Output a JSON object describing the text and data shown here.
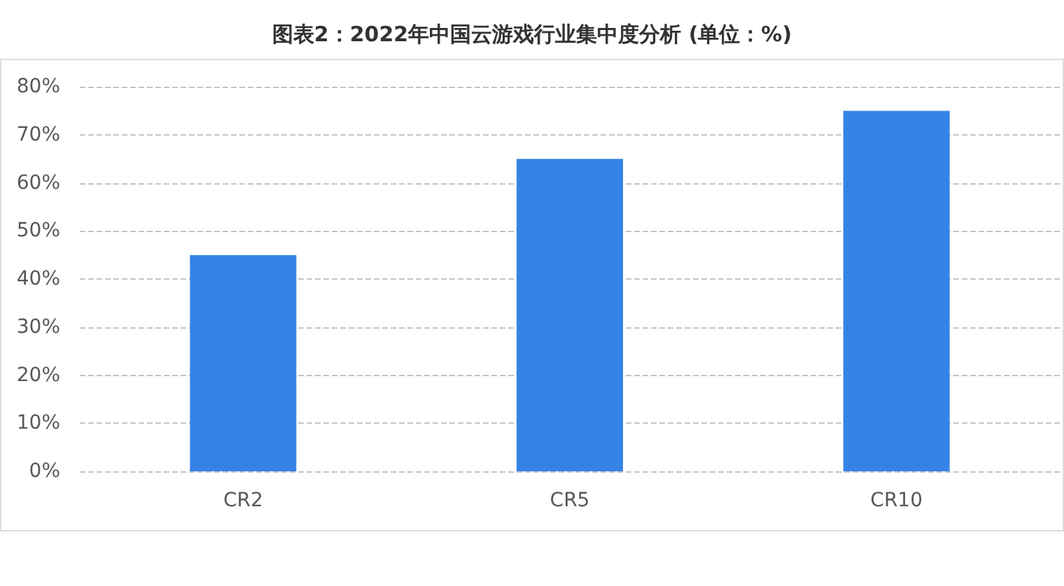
{
  "chart_data": {
    "type": "bar",
    "title": "图表2：2022年中国云游戏行业集中度分析 (单位：%)",
    "categories": [
      "CR2",
      "CR5",
      "CR10"
    ],
    "values": [
      45,
      65,
      75
    ],
    "color": "#3683e6",
    "ylim": [
      0,
      80
    ],
    "yticks": [
      {
        "value": 0,
        "label": "0%"
      },
      {
        "value": 10,
        "label": "10%"
      },
      {
        "value": 20,
        "label": "20%"
      },
      {
        "value": 30,
        "label": "30%"
      },
      {
        "value": 40,
        "label": "40%"
      },
      {
        "value": 50,
        "label": "50%"
      },
      {
        "value": 60,
        "label": "60%"
      },
      {
        "value": 70,
        "label": "70%"
      },
      {
        "value": 80,
        "label": "80%"
      }
    ],
    "grid": "y"
  }
}
